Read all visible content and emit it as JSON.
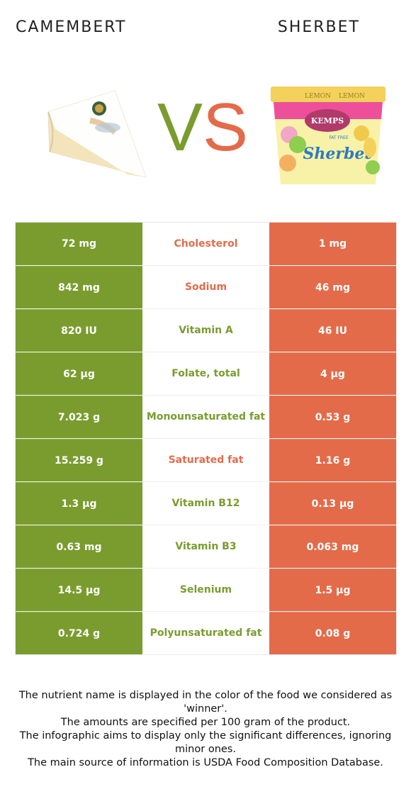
{
  "foods": {
    "left": {
      "name": "CAMEMBERT",
      "color": "#7a9c2e"
    },
    "right": {
      "name": "SHERBET",
      "color": "#e36b4a"
    }
  },
  "vs": {
    "v": "V",
    "s": "S"
  },
  "images": {
    "left_icon": "camembert-wedge",
    "right_icon": "sherbet-tub",
    "tub_text": {
      "brand": "KEMPS",
      "flavor": "LEMON",
      "tag": "FAT FREE",
      "product": "Sherbet"
    }
  },
  "rows": [
    {
      "left": "72 mg",
      "nutrient": "Cholesterol",
      "right": "1 mg",
      "winner": "right"
    },
    {
      "left": "842 mg",
      "nutrient": "Sodium",
      "right": "46 mg",
      "winner": "right"
    },
    {
      "left": "820 IU",
      "nutrient": "Vitamin A",
      "right": "46 IU",
      "winner": "left"
    },
    {
      "left": "62 µg",
      "nutrient": "Folate, total",
      "right": "4 µg",
      "winner": "left"
    },
    {
      "left": "7.023 g",
      "nutrient": "Monounsaturated fat",
      "right": "0.53 g",
      "winner": "left"
    },
    {
      "left": "15.259 g",
      "nutrient": "Saturated fat",
      "right": "1.16 g",
      "winner": "right"
    },
    {
      "left": "1.3 µg",
      "nutrient": "Vitamin B12",
      "right": "0.13 µg",
      "winner": "left"
    },
    {
      "left": "0.63 mg",
      "nutrient": "Vitamin B3",
      "right": "0.063 mg",
      "winner": "left"
    },
    {
      "left": "14.5 µg",
      "nutrient": "Selenium",
      "right": "1.5 µg",
      "winner": "left"
    },
    {
      "left": "0.724 g",
      "nutrient": "Polyunsaturated fat",
      "right": "0.08 g",
      "winner": "left"
    }
  ],
  "footer": [
    "The nutrient name is displayed in the color of the food we considered as 'winner'.",
    "The amounts are specified per 100 gram of the product.",
    "The infographic aims to display only the significant differences, ignoring minor ones.",
    "The main source of information is USDA Food Composition Database."
  ]
}
